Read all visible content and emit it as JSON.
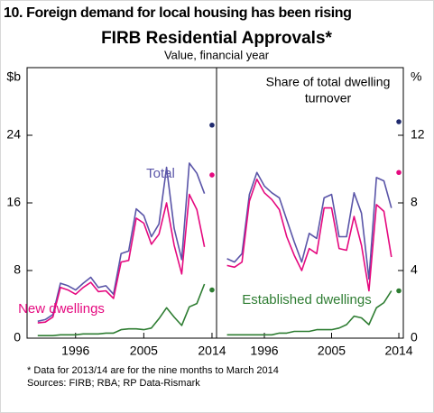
{
  "header": {
    "title": "10. Foreign demand for local housing has been rising",
    "chart_title": "FIRB Residential Approvals*",
    "subtitle": "Value, financial year"
  },
  "footnotes": [
    "*    Data for 2013/14 are for the nine months to March 2014",
    "Sources: FIRB; RBA; RP Data-Rismark"
  ],
  "chart_data": [
    {
      "type": "line",
      "ylabel": "$b",
      "y_side": "left",
      "x": [
        1991,
        1992,
        1993,
        1994,
        1995,
        1996,
        1997,
        1998,
        1999,
        2000,
        2001,
        2002,
        2003,
        2004,
        2005,
        2006,
        2007,
        2008,
        2009,
        2010,
        2011,
        2012,
        2013
      ],
      "xlim": [
        1989.6,
        2014.6
      ],
      "xticks": [
        1996,
        2005,
        2014
      ],
      "ylim": [
        0,
        32
      ],
      "yticks": [
        0,
        8,
        16,
        24
      ],
      "point_x": 2014,
      "series": [
        {
          "name": "Total",
          "color": "#5a55a8",
          "point_color": "#1f2a6e",
          "values": [
            2.0,
            2.2,
            2.8,
            6.5,
            6.2,
            5.7,
            6.5,
            7.2,
            6.0,
            6.2,
            5.2,
            10.0,
            10.3,
            15.3,
            14.5,
            12.0,
            13.5,
            20.2,
            13.0,
            9.3,
            20.7,
            19.5,
            17.1
          ],
          "point": 25.2
        },
        {
          "name": "New dwellings",
          "color": "#e5097f",
          "point_color": "#e5097f",
          "values": [
            1.8,
            1.9,
            2.5,
            6.0,
            5.7,
            5.2,
            6.0,
            6.6,
            5.5,
            5.6,
            4.7,
            9.0,
            9.2,
            14.2,
            13.6,
            11.1,
            12.3,
            16.0,
            11.0,
            7.6,
            17.0,
            15.2,
            10.8
          ],
          "point": 19.3
        },
        {
          "color": "#2e7d32",
          "point_color": "#2e7d32",
          "values": [
            0.3,
            0.3,
            0.3,
            0.4,
            0.4,
            0.4,
            0.5,
            0.5,
            0.5,
            0.6,
            0.6,
            1.0,
            1.1,
            1.1,
            1.0,
            1.2,
            2.3,
            3.6,
            2.5,
            1.5,
            3.7,
            4.1,
            6.4
          ],
          "point": 5.7
        }
      ]
    },
    {
      "type": "line",
      "ylabel": "%",
      "y_side": "right",
      "annotation": [
        "Share of total dwelling",
        "turnover"
      ],
      "x": [
        1991,
        1992,
        1993,
        1994,
        1995,
        1996,
        1997,
        1998,
        1999,
        2000,
        2001,
        2002,
        2003,
        2004,
        2005,
        2006,
        2007,
        2008,
        2009,
        2010,
        2011,
        2012,
        2013
      ],
      "xlim": [
        1989.6,
        2014.6
      ],
      "xticks": [
        1996,
        2005,
        2014
      ],
      "ylim": [
        0,
        16
      ],
      "yticks": [
        0,
        4,
        8,
        12
      ],
      "point_x": 2014,
      "series": [
        {
          "color": "#5a55a8",
          "point_color": "#1f2a6e",
          "values": [
            4.7,
            4.5,
            5.0,
            8.5,
            9.8,
            9.0,
            8.6,
            8.3,
            7.0,
            5.7,
            4.5,
            6.2,
            5.9,
            8.3,
            8.5,
            6.0,
            6.0,
            8.6,
            7.4,
            3.5,
            9.5,
            9.3,
            7.7
          ],
          "point": 12.8
        },
        {
          "color": "#e5097f",
          "point_color": "#e5097f",
          "values": [
            4.3,
            4.2,
            4.5,
            8.1,
            9.4,
            8.6,
            8.2,
            7.6,
            6.0,
            4.9,
            4.0,
            5.3,
            5.0,
            7.7,
            7.7,
            5.3,
            5.2,
            7.2,
            5.5,
            2.8,
            7.9,
            7.5,
            4.8
          ],
          "point": 9.8
        },
        {
          "name": "Established dwellings",
          "color": "#2e7d32",
          "point_color": "#2e7d32",
          "values": [
            0.2,
            0.2,
            0.2,
            0.2,
            0.2,
            0.2,
            0.2,
            0.3,
            0.3,
            0.4,
            0.4,
            0.4,
            0.5,
            0.5,
            0.5,
            0.6,
            0.8,
            1.3,
            1.2,
            0.8,
            1.8,
            2.1,
            2.8
          ],
          "point": 2.8
        }
      ]
    }
  ]
}
